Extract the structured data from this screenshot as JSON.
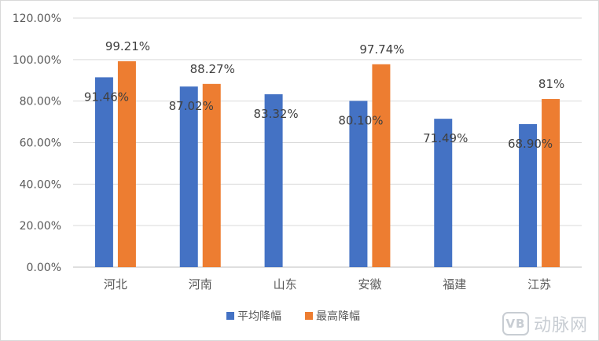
{
  "chart_data": {
    "type": "bar",
    "categories": [
      "河北",
      "河南",
      "山东",
      "安徽",
      "福建",
      "江苏"
    ],
    "series": [
      {
        "name": "平均降幅",
        "color": "#4472c4",
        "values": [
          91.46,
          87.02,
          83.32,
          80.1,
          71.49,
          68.9
        ],
        "labels": [
          "91.46%",
          "87.02%",
          "83.32%",
          "80.10%",
          "71.49%",
          "68.90%"
        ]
      },
      {
        "name": "最高降幅",
        "color": "#ed7d31",
        "values": [
          99.21,
          88.27,
          null,
          97.74,
          null,
          81
        ],
        "labels": [
          "99.21%",
          "88.27%",
          "",
          "97.74%",
          "",
          "81%"
        ]
      }
    ],
    "yticks": [
      "0.00%",
      "20.00%",
      "40.00%",
      "60.00%",
      "80.00%",
      "100.00%",
      "120.00%"
    ],
    "ylim": [
      0,
      120
    ],
    "grid": true,
    "legend_position": "bottom"
  },
  "watermark": {
    "logo_text": "VB",
    "text": "动脉网"
  }
}
